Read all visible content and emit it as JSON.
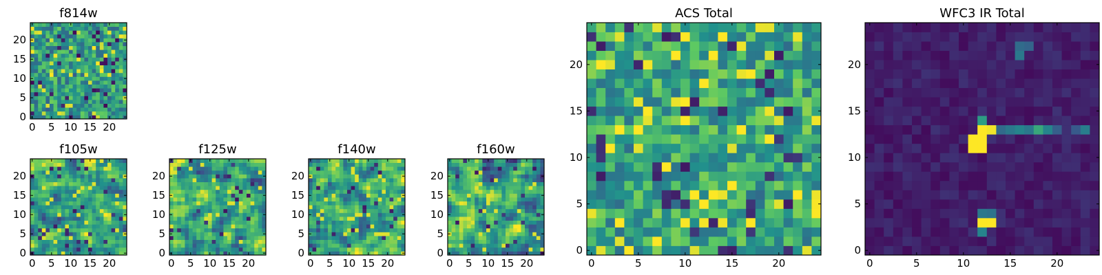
{
  "figure": {
    "description_colormap": "viridis",
    "colormap_stops": [
      "#440154",
      "#3b528b",
      "#21918c",
      "#5ec962",
      "#fde725"
    ]
  },
  "chart_data": [
    {
      "type": "heatmap",
      "id": "f814w",
      "title": "f814w",
      "grid": 25,
      "xticks": [
        0,
        5,
        10,
        15,
        20
      ],
      "yticks": [
        0,
        5,
        10,
        15,
        20
      ],
      "xlim": [
        -0.5,
        24.5
      ],
      "ylim": [
        -0.5,
        24.5
      ],
      "value_range": [
        0,
        1
      ],
      "style": "noise",
      "seed": 11
    },
    {
      "type": "heatmap",
      "id": "f105w",
      "title": "f105w",
      "grid": 25,
      "xticks": [
        0,
        5,
        10,
        15,
        20
      ],
      "yticks": [
        0,
        5,
        10,
        15,
        20
      ],
      "xlim": [
        -0.5,
        24.5
      ],
      "ylim": [
        -0.5,
        24.5
      ],
      "value_range": [
        0,
        1
      ],
      "style": "smooth",
      "seed": 23
    },
    {
      "type": "heatmap",
      "id": "f125w",
      "title": "f125w",
      "grid": 25,
      "xticks": [
        0,
        5,
        10,
        15,
        20
      ],
      "yticks": [
        0,
        5,
        10,
        15,
        20
      ],
      "xlim": [
        -0.5,
        24.5
      ],
      "ylim": [
        -0.5,
        24.5
      ],
      "value_range": [
        0,
        1
      ],
      "style": "smooth",
      "seed": 37
    },
    {
      "type": "heatmap",
      "id": "f140w",
      "title": "f140w",
      "grid": 25,
      "xticks": [
        0,
        5,
        10,
        15,
        20
      ],
      "yticks": [
        0,
        5,
        10,
        15,
        20
      ],
      "xlim": [
        -0.5,
        24.5
      ],
      "ylim": [
        -0.5,
        24.5
      ],
      "value_range": [
        0,
        1
      ],
      "style": "smooth",
      "seed": 41
    },
    {
      "type": "heatmap",
      "id": "f160w",
      "title": "f160w",
      "grid": 25,
      "xticks": [
        0,
        5,
        10,
        15,
        20
      ],
      "yticks": [
        0,
        5,
        10,
        15,
        20
      ],
      "xlim": [
        -0.5,
        24.5
      ],
      "ylim": [
        -0.5,
        24.5
      ],
      "value_range": [
        0,
        1
      ],
      "style": "smooth",
      "seed": 53
    },
    {
      "type": "heatmap",
      "id": "acs-total",
      "title": "ACS Total",
      "grid": 25,
      "xticks": [
        0,
        5,
        10,
        15,
        20
      ],
      "yticks": [
        0,
        5,
        10,
        15,
        20
      ],
      "xlim": [
        -0.5,
        24.5
      ],
      "ylim": [
        -0.5,
        24.5
      ],
      "value_range": [
        0,
        1
      ],
      "style": "noise-bright",
      "seed": 67
    },
    {
      "type": "heatmap",
      "id": "wfc3-ir-total",
      "title": "WFC3 IR Total",
      "grid": 25,
      "xticks": [
        0,
        5,
        10,
        15,
        20
      ],
      "yticks": [
        0,
        5,
        10,
        15,
        20
      ],
      "xlim": [
        -0.5,
        24.5
      ],
      "ylim": [
        -0.5,
        24.5
      ],
      "value_range": [
        0,
        1
      ],
      "style": "dark-sources",
      "seed": 79,
      "bright_pixels": [
        {
          "x": 11,
          "y": 11,
          "value": 1.0
        },
        {
          "x": 12,
          "y": 11,
          "value": 1.0
        },
        {
          "x": 11,
          "y": 12,
          "value": 1.0
        },
        {
          "x": 12,
          "y": 12,
          "value": 1.0
        },
        {
          "x": 12,
          "y": 13,
          "value": 1.0
        },
        {
          "x": 13,
          "y": 13,
          "value": 0.98
        },
        {
          "x": 12,
          "y": 14,
          "value": 0.55
        },
        {
          "x": 14,
          "y": 13,
          "value": 0.35
        },
        {
          "x": 15,
          "y": 13,
          "value": 0.4
        },
        {
          "x": 16,
          "y": 13,
          "value": 0.45
        },
        {
          "x": 17,
          "y": 13,
          "value": 0.4
        },
        {
          "x": 18,
          "y": 13,
          "value": 0.6
        },
        {
          "x": 19,
          "y": 13,
          "value": 0.45
        },
        {
          "x": 20,
          "y": 13,
          "value": 0.3
        },
        {
          "x": 22,
          "y": 13,
          "value": 0.28
        },
        {
          "x": 23,
          "y": 13,
          "value": 0.42
        },
        {
          "x": 12,
          "y": 3,
          "value": 1.0
        },
        {
          "x": 13,
          "y": 3,
          "value": 1.0
        },
        {
          "x": 12,
          "y": 4,
          "value": 0.4
        },
        {
          "x": 13,
          "y": 4,
          "value": 0.38
        },
        {
          "x": 12,
          "y": 2,
          "value": 0.45
        },
        {
          "x": 16,
          "y": 22,
          "value": 0.35
        },
        {
          "x": 17,
          "y": 22,
          "value": 0.32
        },
        {
          "x": 16,
          "y": 21,
          "value": 0.4
        }
      ]
    }
  ]
}
